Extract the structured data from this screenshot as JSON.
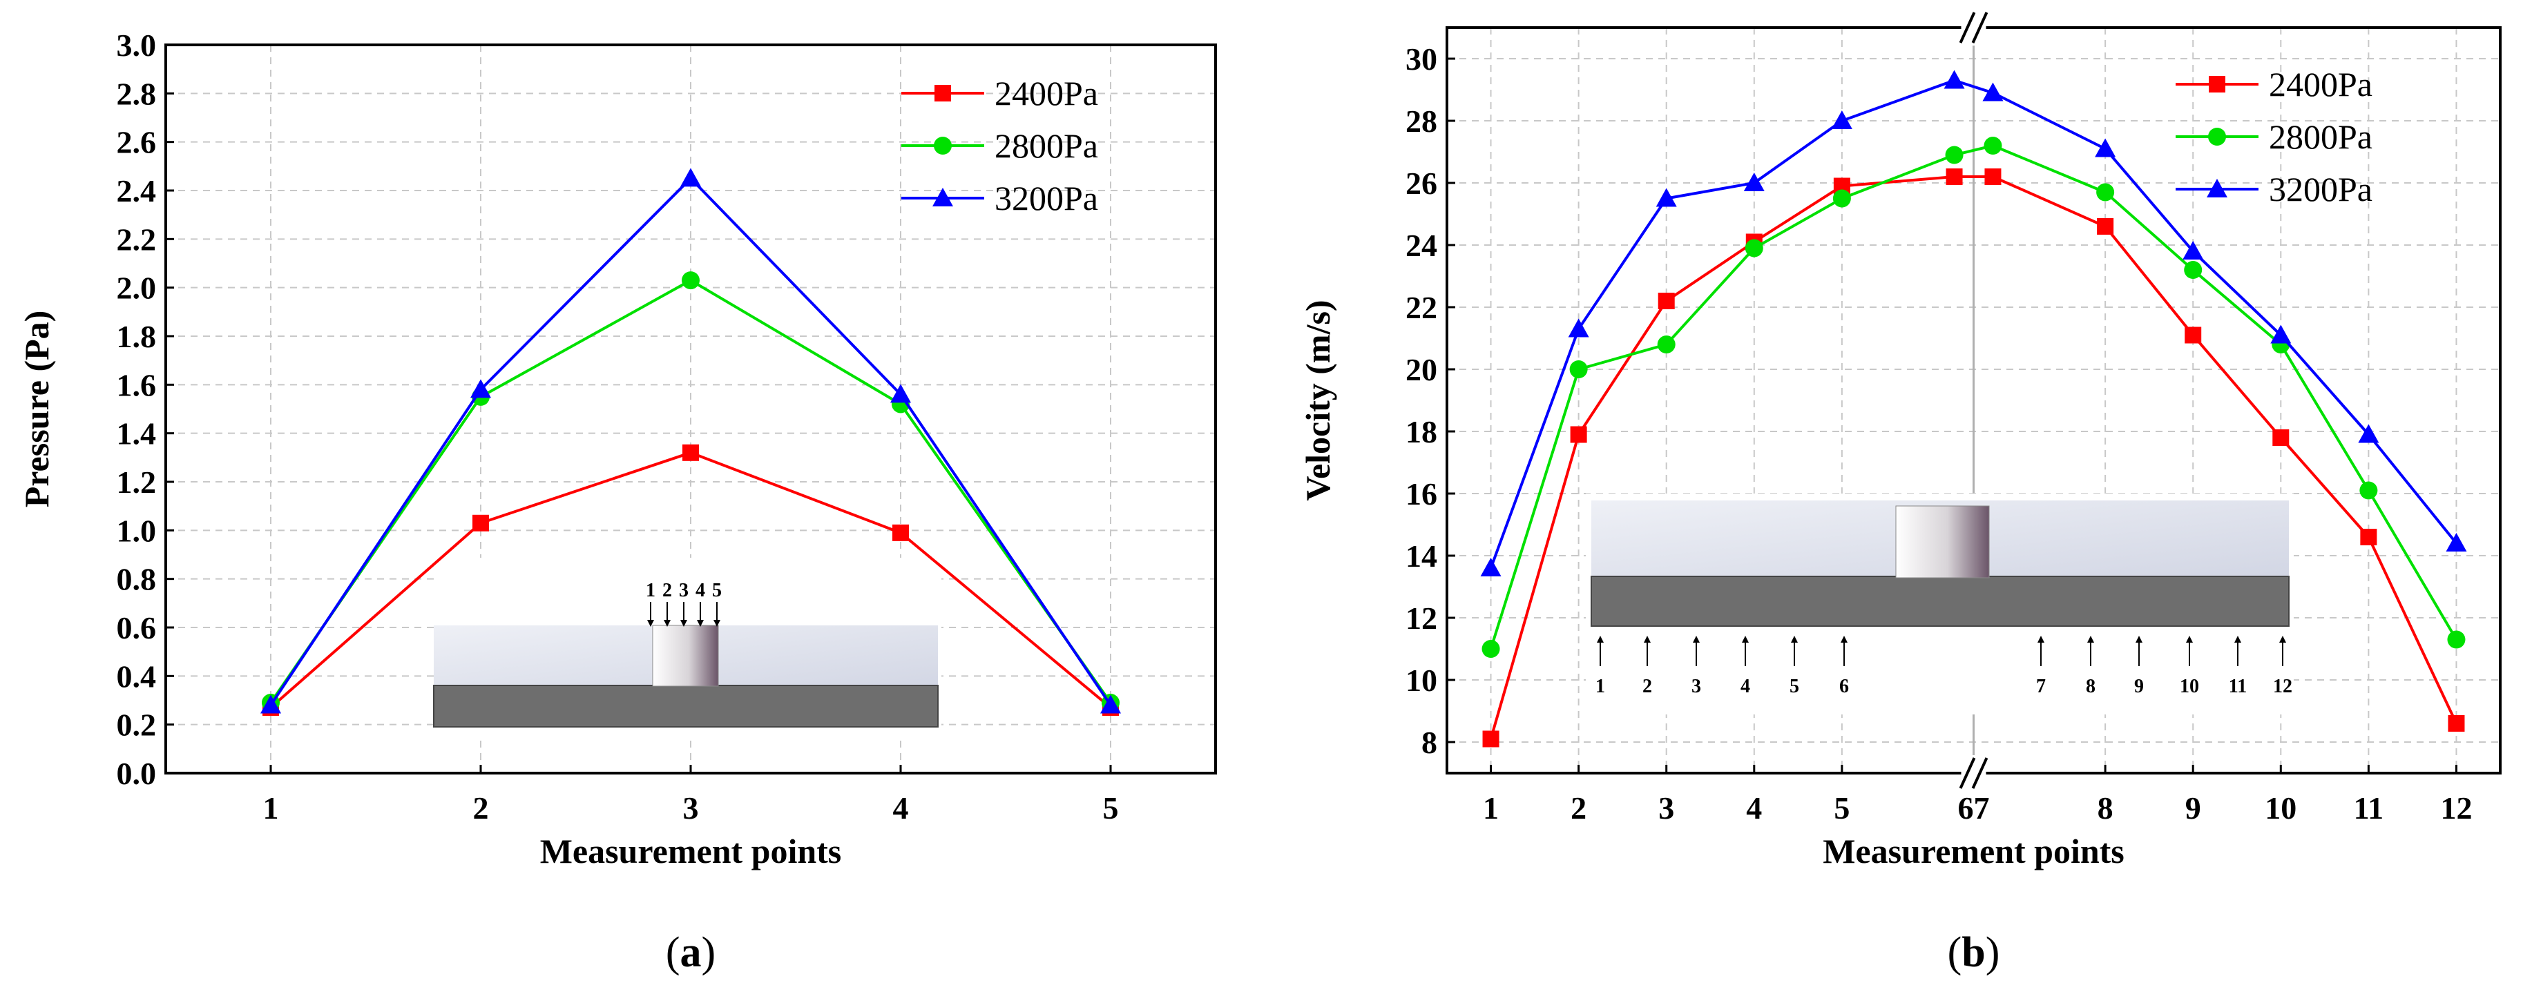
{
  "chart_data": [
    {
      "type": "line",
      "caption_letter": "a",
      "title": "",
      "xlabel": "Measurement points",
      "ylabel": "Pressure (Pa)",
      "ylim": [
        0.0,
        3.0
      ],
      "xlim": [
        0.5,
        5.5
      ],
      "grid": true,
      "legend_position": "top-right",
      "x_tick_labels": [
        "1",
        "2",
        "3",
        "4",
        "5"
      ],
      "y_tick_labels": [
        "0.0",
        "0.2",
        "0.4",
        "0.6",
        "0.8",
        "1.0",
        "1.2",
        "1.4",
        "1.6",
        "1.8",
        "2.0",
        "2.2",
        "2.4",
        "2.6",
        "2.8",
        "3.0"
      ],
      "x": [
        1,
        2,
        3,
        4,
        5
      ],
      "series": [
        {
          "name": "2400Pa",
          "color": "#ff0000",
          "marker": "square",
          "values": [
            0.27,
            1.03,
            1.32,
            0.99,
            0.27
          ]
        },
        {
          "name": "2800Pa",
          "color": "#00e000",
          "marker": "circle",
          "values": [
            0.29,
            1.55,
            2.03,
            1.52,
            0.29
          ]
        },
        {
          "name": "3200Pa",
          "color": "#0000ff",
          "marker": "triangle",
          "values": [
            0.28,
            1.58,
            2.45,
            1.56,
            0.28
          ]
        }
      ],
      "inset": {
        "probe_labels": [
          "1",
          "2",
          "3",
          "4",
          "5"
        ]
      }
    },
    {
      "type": "line",
      "caption_letter": "b",
      "title": "",
      "xlabel": "Measurement points",
      "ylabel": "Velocity (m/s)",
      "ylim": [
        7,
        31
      ],
      "xlim": [
        0.5,
        12.5
      ],
      "axis_break_x": 6.5,
      "axis_break_mark": "//",
      "grid": true,
      "legend_position": "top-right",
      "x_tick_labels": [
        "1",
        "2",
        "3",
        "4",
        "5",
        "67",
        "8",
        "9",
        "10",
        "11",
        "12"
      ],
      "y_tick_labels": [
        "8",
        "10",
        "12",
        "14",
        "16",
        "18",
        "20",
        "22",
        "24",
        "26",
        "28",
        "30"
      ],
      "x": [
        1,
        2,
        3,
        4,
        5,
        6,
        7,
        8,
        9,
        10,
        11,
        12
      ],
      "series": [
        {
          "name": "2400Pa",
          "color": "#ff0000",
          "marker": "square",
          "values": [
            8.1,
            17.9,
            22.2,
            24.1,
            25.9,
            26.2,
            26.2,
            24.6,
            21.1,
            17.8,
            14.6,
            8.6
          ]
        },
        {
          "name": "2800Pa",
          "color": "#00e000",
          "marker": "circle",
          "values": [
            11.0,
            20.0,
            20.8,
            23.9,
            25.5,
            26.9,
            27.2,
            25.7,
            23.2,
            20.8,
            16.1,
            11.3
          ]
        },
        {
          "name": "3200Pa",
          "color": "#0000ff",
          "marker": "triangle",
          "values": [
            13.6,
            21.3,
            25.5,
            26.0,
            28.0,
            29.3,
            28.9,
            27.1,
            23.8,
            21.1,
            17.9,
            14.4
          ]
        }
      ],
      "inset": {
        "probe_labels": [
          "1",
          "2",
          "3",
          "4",
          "5",
          "6",
          "7",
          "8",
          "9",
          "10",
          "11",
          "12"
        ]
      }
    }
  ]
}
